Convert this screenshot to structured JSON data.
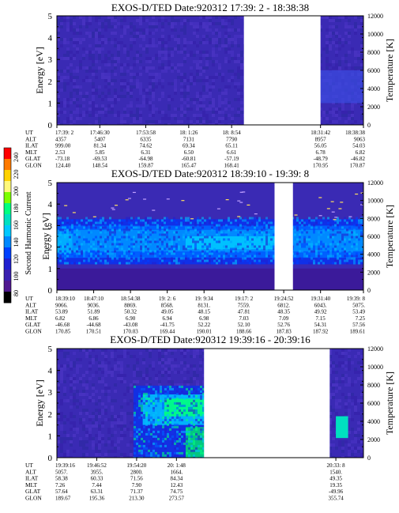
{
  "colorbar": {
    "label": "Second Harmonic Current",
    "ticks": [
      "240",
      "220",
      "200",
      "180",
      "160",
      "140",
      "120",
      "100",
      "80"
    ],
    "colors": [
      "#ff0000",
      "#ff7a00",
      "#ffd200",
      "#fff97a",
      "#7cff00",
      "#00ff80",
      "#00e0c0",
      "#00c8ff",
      "#0088ff",
      "#0040ff",
      "#2020d0",
      "#3a20b0",
      "#501890",
      "#000000"
    ],
    "range": [
      80,
      240
    ]
  },
  "chart_data": [
    {
      "type": "heatmap",
      "title": "EXOS-D/TED    Date:920312  17:39: 2 - 18:38:38",
      "ylabel": "Energy [eV]",
      "ylabel_right": "Temperature [K]",
      "ylim": [
        0,
        5
      ],
      "y2lim": [
        0,
        12000
      ],
      "yticks": [
        "0",
        "1",
        "2",
        "3",
        "4",
        "5"
      ],
      "y2ticks": [
        "0",
        "2000",
        "4000",
        "6000",
        "8000",
        "10000",
        "12000"
      ],
      "gap": [
        0.61,
        0.86
      ],
      "orbit_table": {
        "row_labels": [
          "UT",
          "ALT",
          "ILAT",
          "MLT",
          "GLAT",
          "GLON"
        ],
        "columns": [
          {
            "pos": 0.0,
            "values": [
              "17:39: 2",
              "4357",
              "999.00",
              "2.53",
              "-73.18",
              "124.40"
            ]
          },
          {
            "pos": 0.14,
            "values": [
              "17:46:30",
              "5407",
              "81.34",
              "5.85",
              "-69.53",
              "148.54"
            ]
          },
          {
            "pos": 0.29,
            "values": [
              "17:53:58",
              "6335",
              "74.62",
              "6.31",
              "-64.98",
              "159.87"
            ]
          },
          {
            "pos": 0.43,
            "values": [
              "18: 1:26",
              "7131",
              "69.34",
              "6.50",
              "-60.81",
              "165.47"
            ]
          },
          {
            "pos": 0.57,
            "values": [
              "18: 8:54",
              "7790",
              "65.11",
              "6.61",
              "-57.19",
              "168.41"
            ]
          },
          {
            "pos": 0.86,
            "values": [
              "18:31:42",
              "8957",
              "56.05",
              "6.78",
              "-48.79",
              "170.95"
            ]
          },
          {
            "pos": 1.0,
            "values": [
              "18:38:38",
              "9063",
              "54.03",
              "6.82",
              "-46.82",
              "170.87"
            ]
          }
        ]
      }
    },
    {
      "type": "heatmap",
      "title": "EXOS-D/TED    Date:920312  18:39:10 - 19:39: 8",
      "ylabel": "Energy [eV]",
      "ylabel_right": "Temperature [K]",
      "ylim": [
        0,
        5
      ],
      "y2lim": [
        0,
        12000
      ],
      "yticks": [
        "0",
        "1",
        "2",
        "3",
        "4",
        "5"
      ],
      "y2ticks": [
        "0",
        "2000",
        "4000",
        "6000",
        "8000",
        "10000",
        "12000"
      ],
      "gap": [
        0.71,
        0.77
      ],
      "orbit_table": {
        "row_labels": [
          "UT",
          "ALT",
          "ILAT",
          "MLT",
          "GLAT",
          "GLON"
        ],
        "columns": [
          {
            "pos": 0.0,
            "values": [
              "18:39:10",
              "9066.",
              "53.89",
              "6.82",
              "-46.68",
              "170.85"
            ]
          },
          {
            "pos": 0.12,
            "values": [
              "18:47:10",
              "9036.",
              "51.89",
              "6.86",
              "-44.68",
              "170.51"
            ]
          },
          {
            "pos": 0.24,
            "values": [
              "18:54:38",
              "8869.",
              "50.32",
              "6.90",
              "-43.08",
              "170.03"
            ]
          },
          {
            "pos": 0.36,
            "values": [
              "19: 2: 6",
              "8568.",
              "49.05",
              "6.94",
              "-41.75",
              "169.44"
            ]
          },
          {
            "pos": 0.48,
            "values": [
              "19: 9:34",
              "8131.",
              "48.15",
              "6.98",
              "52.22",
              "190.01"
            ]
          },
          {
            "pos": 0.61,
            "values": [
              "19:17: 2",
              "7559.",
              "47.81",
              "7.03",
              "52.10",
              "188.66"
            ]
          },
          {
            "pos": 0.74,
            "values": [
              "19:24:52",
              "6812.",
              "48.35",
              "7.09",
              "52.76",
              "187.83"
            ]
          },
          {
            "pos": 0.86,
            "values": [
              "19:31:40",
              "6043.",
              "49.92",
              "7.15",
              "54.31",
              "187.92"
            ]
          },
          {
            "pos": 1.0,
            "values": [
              "19:39: 8",
              "5075.",
              "53.49",
              "7.25",
              "57.56",
              "189.61"
            ]
          }
        ]
      }
    },
    {
      "type": "heatmap",
      "title": "EXOS-D/TED    Date:920312  19:39:16 - 20:39:16",
      "ylabel": "Energy [eV]",
      "ylabel_right": "Temperature [K]",
      "ylim": [
        0,
        5
      ],
      "y2lim": [
        0,
        12000
      ],
      "yticks": [
        "0",
        "1",
        "2",
        "3",
        "4",
        "5"
      ],
      "y2ticks": [
        "0",
        "2000",
        "4000",
        "6000",
        "8000",
        "10000",
        "12000"
      ],
      "gap": [
        0.48,
        0.89
      ],
      "orbit_table": {
        "row_labels": [
          "UT",
          "ALT",
          "ILAT",
          "MLT",
          "GLAT",
          "GLON"
        ],
        "columns": [
          {
            "pos": 0.0,
            "values": [
              "19:39:16",
              "5057.",
              "58.38",
              "7.26",
              "57.64",
              "189.67"
            ]
          },
          {
            "pos": 0.13,
            "values": [
              "19:46:52",
              "3955.",
              "60.33",
              "7.44",
              "63.31",
              "195.36"
            ]
          },
          {
            "pos": 0.26,
            "values": [
              "19:54:20",
              "2800.",
              "71.56",
              "7.90",
              "71.37",
              "213.30"
            ]
          },
          {
            "pos": 0.39,
            "values": [
              "20: 1:48",
              "1664.",
              "84.34",
              "12.43",
              "74.75",
              "273.57"
            ]
          },
          {
            "pos": 0.91,
            "values": [
              "20:33: 8",
              "1540.",
              "49.35",
              "19.35",
              "-49.96",
              "355.74"
            ]
          }
        ]
      }
    }
  ]
}
